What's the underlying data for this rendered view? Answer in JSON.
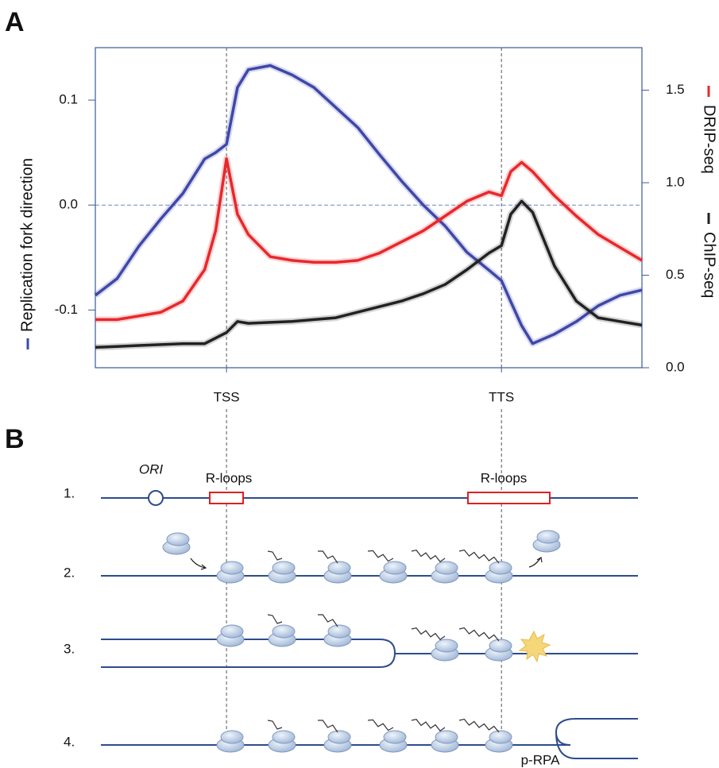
{
  "panels": [
    "A",
    "B"
  ],
  "chart_data": {
    "type": "line",
    "x": [
      0,
      4,
      8,
      12,
      16,
      20,
      22,
      24,
      26,
      28,
      32,
      36,
      40,
      44,
      48,
      52,
      56,
      60,
      64,
      68,
      72,
      74.3,
      76,
      78,
      80,
      84,
      88,
      92,
      96,
      100
    ],
    "xlim": [
      0,
      100
    ],
    "xticks": [
      {
        "value": 24,
        "label": "TSS"
      },
      {
        "value": 74.3,
        "label": "TTS"
      }
    ],
    "grid": "x",
    "hline": 0,
    "ylim": [
      -0.155,
      0.15
    ],
    "yticks": [
      {
        "value": -0.1,
        "label": "-0.1"
      },
      {
        "value": 0,
        "label": "0.0"
      },
      {
        "value": 0.1,
        "label": "0.1"
      }
    ],
    "y2lim": [
      0,
      1.73
    ],
    "y2ticks": [
      {
        "value": 0,
        "label": "0.0"
      },
      {
        "value": 0.5,
        "label": "0.5"
      },
      {
        "value": 1,
        "label": "1.0"
      },
      {
        "value": 1.5,
        "label": "1.5"
      }
    ],
    "series": [
      {
        "name": "Replication fork direction",
        "color": "#3f48a8",
        "axis": "y",
        "values": [
          -0.086,
          -0.07,
          -0.039,
          -0.013,
          0.011,
          0.044,
          0.05,
          0.058,
          0.112,
          0.129,
          0.133,
          0.124,
          0.112,
          0.093,
          0.074,
          0.048,
          0.023,
          0.0,
          -0.02,
          -0.045,
          -0.062,
          -0.072,
          -0.092,
          -0.115,
          -0.132,
          -0.123,
          -0.111,
          -0.096,
          -0.086,
          -0.081
        ]
      },
      {
        "name": "DRIP-seq",
        "color": "#e8282b",
        "axis": "y2",
        "values": [
          0.26,
          0.26,
          0.28,
          0.3,
          0.36,
          0.53,
          0.74,
          1.13,
          0.83,
          0.72,
          0.6,
          0.58,
          0.57,
          0.57,
          0.58,
          0.62,
          0.68,
          0.74,
          0.82,
          0.9,
          0.95,
          0.93,
          1.06,
          1.11,
          1.06,
          0.93,
          0.82,
          0.72,
          0.65,
          0.58
        ]
      },
      {
        "name": "ChIP-seq",
        "color": "#222222",
        "axis": "y2",
        "values": [
          0.11,
          0.115,
          0.12,
          0.125,
          0.13,
          0.13,
          0.16,
          0.19,
          0.25,
          0.24,
          0.245,
          0.25,
          0.26,
          0.27,
          0.3,
          0.33,
          0.36,
          0.4,
          0.45,
          0.53,
          0.62,
          0.66,
          0.83,
          0.9,
          0.84,
          0.55,
          0.36,
          0.27,
          0.25,
          0.23
        ]
      }
    ]
  },
  "diagram": {
    "rows": [
      {
        "label": "1.",
        "annotations": [
          "ORI",
          "R-loops",
          "R-loops"
        ]
      },
      {
        "label": "2."
      },
      {
        "label": "3."
      },
      {
        "label": "4.",
        "annotations": [
          "p-RPA"
        ]
      }
    ]
  }
}
